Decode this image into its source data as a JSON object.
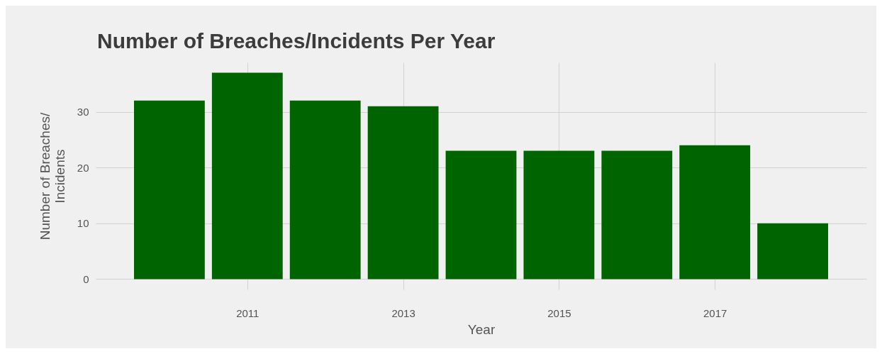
{
  "chart_data": {
    "type": "bar",
    "title": "Number of Breaches/Incidents Per Year",
    "xlabel": "Year",
    "ylabel": "Number of Breaches/\nIncidents",
    "x": [
      2010,
      2011,
      2012,
      2013,
      2014,
      2015,
      2016,
      2017,
      2018
    ],
    "values": [
      32,
      37,
      32,
      31,
      23,
      23,
      23,
      24,
      10
    ],
    "color": "#006400",
    "xlim": [
      2009.1,
      2018.9
    ],
    "xticks": [
      2011,
      2013,
      2015,
      2017
    ],
    "ylim": [
      -1.85,
      38.85
    ],
    "yticks": [
      0,
      10,
      20,
      30
    ],
    "grid": true
  }
}
